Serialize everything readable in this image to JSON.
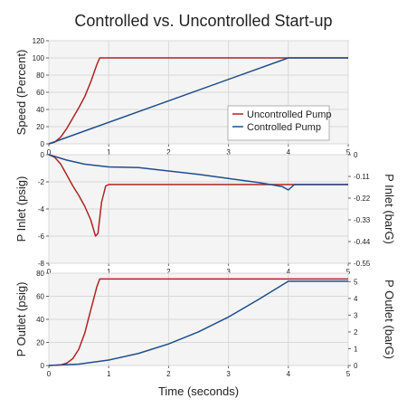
{
  "chart_data": {
    "title": "Controlled vs. Uncontrolled Start-up",
    "xlabel": "Time (seconds)",
    "x_ticks": [
      "0",
      "1",
      "2",
      "3",
      "4",
      "5"
    ],
    "colors": {
      "uncontrolled": "#b22222",
      "controlled": "#1f4e8c",
      "grid": "#d9d9d9",
      "panel": "#f4f4f4"
    },
    "panels": [
      {
        "type": "line",
        "ylabel": "Speed (Percent)",
        "ylim": [
          0,
          120
        ],
        "y_ticks": [
          "0",
          "20",
          "40",
          "60",
          "80",
          "100",
          "120"
        ],
        "legend": {
          "placement": "right-lower",
          "entries": [
            "Uncontrolled Pump",
            "Controlled Pump"
          ]
        },
        "series": [
          {
            "name": "Uncontrolled Pump",
            "color_key": "uncontrolled",
            "points": [
              [
                0,
                0
              ],
              [
                0.1,
                2
              ],
              [
                0.2,
                8
              ],
              [
                0.3,
                18
              ],
              [
                0.4,
                30
              ],
              [
                0.5,
                42
              ],
              [
                0.6,
                55
              ],
              [
                0.7,
                72
              ],
              [
                0.8,
                92
              ],
              [
                0.85,
                100
              ],
              [
                5,
                100
              ]
            ]
          },
          {
            "name": "Controlled Pump",
            "color_key": "controlled",
            "points": [
              [
                0,
                0
              ],
              [
                4,
                100
              ],
              [
                5,
                100
              ]
            ]
          }
        ]
      },
      {
        "type": "line",
        "ylabel": "P Inlet (psig)",
        "ylim": [
          -8,
          0
        ],
        "y_ticks": [
          "-8",
          "-6",
          "-4",
          "-2",
          "0"
        ],
        "right_ylabel": "P Inlet (barG)",
        "right_ylim": [
          -0.55,
          0
        ],
        "right_ticks": [
          "-0.55",
          "-0.44",
          "-0.33",
          "-0.22",
          "-0.11",
          "0"
        ],
        "series": [
          {
            "name": "Uncontrolled Pump",
            "color_key": "uncontrolled",
            "points": [
              [
                0,
                0
              ],
              [
                0.1,
                -0.2
              ],
              [
                0.2,
                -0.7
              ],
              [
                0.3,
                -1.5
              ],
              [
                0.4,
                -2.3
              ],
              [
                0.5,
                -3
              ],
              [
                0.6,
                -3.8
              ],
              [
                0.7,
                -4.8
              ],
              [
                0.78,
                -6
              ],
              [
                0.82,
                -5.8
              ],
              [
                0.88,
                -3.5
              ],
              [
                0.95,
                -2.3
              ],
              [
                1.0,
                -2.2
              ],
              [
                5,
                -2.2
              ]
            ]
          },
          {
            "name": "Controlled Pump",
            "color_key": "controlled",
            "points": [
              [
                0,
                0
              ],
              [
                0.3,
                -0.4
              ],
              [
                0.6,
                -0.7
              ],
              [
                1.0,
                -0.9
              ],
              [
                1.5,
                -0.95
              ],
              [
                2.0,
                -1.2
              ],
              [
                2.5,
                -1.45
              ],
              [
                3.0,
                -1.75
              ],
              [
                3.5,
                -2.05
              ],
              [
                3.9,
                -2.35
              ],
              [
                4.0,
                -2.6
              ],
              [
                4.1,
                -2.2
              ],
              [
                5,
                -2.2
              ]
            ]
          }
        ]
      },
      {
        "type": "line",
        "ylabel": "P Outlet (psig)",
        "ylim": [
          0,
          80
        ],
        "y_ticks": [
          "0",
          "20",
          "40",
          "60",
          "80"
        ],
        "right_ylabel": "P Outlet (barG)",
        "right_ylim": [
          0,
          5.5
        ],
        "right_ticks": [
          "0",
          "1",
          "2",
          "3",
          "4",
          "5"
        ],
        "series": [
          {
            "name": "Uncontrolled Pump",
            "color_key": "uncontrolled",
            "points": [
              [
                0,
                0
              ],
              [
                0.2,
                0.5
              ],
              [
                0.3,
                2
              ],
              [
                0.4,
                6
              ],
              [
                0.5,
                14
              ],
              [
                0.6,
                28
              ],
              [
                0.7,
                48
              ],
              [
                0.8,
                68
              ],
              [
                0.85,
                75
              ],
              [
                5,
                75
              ]
            ]
          },
          {
            "name": "Controlled Pump",
            "color_key": "controlled",
            "points": [
              [
                0,
                0
              ],
              [
                0.5,
                1.2
              ],
              [
                1.0,
                4.7
              ],
              [
                1.5,
                10.5
              ],
              [
                2.0,
                18.7
              ],
              [
                2.5,
                29.2
              ],
              [
                3.0,
                42
              ],
              [
                3.5,
                57.2
              ],
              [
                4.0,
                73
              ],
              [
                5,
                73
              ]
            ]
          }
        ]
      }
    ]
  }
}
